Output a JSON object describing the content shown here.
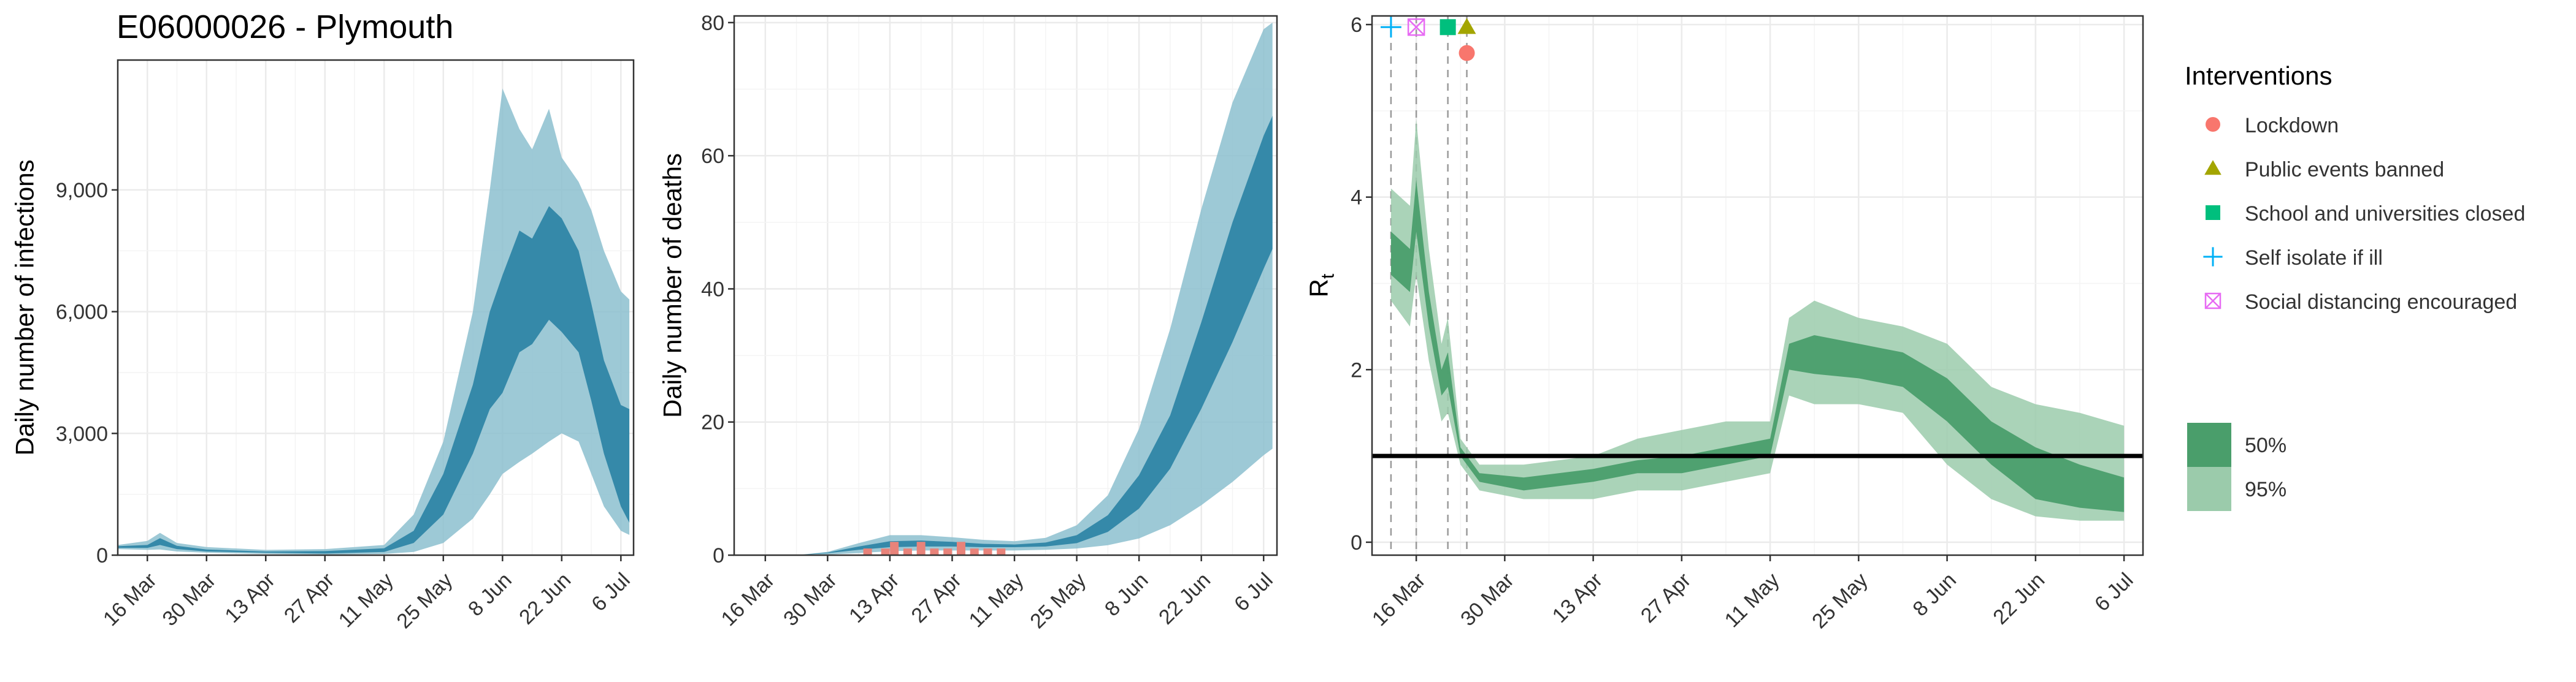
{
  "title": "E06000026 - Plymouth",
  "colors": {
    "infection_50": "#2f86a6",
    "infection_95": "#8cbfcf",
    "rt_50": "#4a9e6b",
    "rt_95": "#9bcbab",
    "observed_deaths": "#e8837a",
    "lockdown": "#F8766D",
    "public_events": "#A3A500",
    "school": "#00BF7D",
    "self_isolate": "#00B0F6",
    "social_distancing": "#E76BF3"
  },
  "legend": {
    "title": "Interventions",
    "items": [
      {
        "label": "Lockdown",
        "shape": "circle",
        "color": "#F8766D"
      },
      {
        "label": "Public events banned",
        "shape": "triangle",
        "color": "#A3A500"
      },
      {
        "label": "School and universities closed",
        "shape": "square",
        "color": "#00BF7D"
      },
      {
        "label": "Self isolate if ill",
        "shape": "plus",
        "color": "#00B0F6"
      },
      {
        "label": "Social distancing encouraged",
        "shape": "boxcross",
        "color": "#E76BF3"
      }
    ],
    "intervals": [
      {
        "label": "50%",
        "color": "#4a9e6b"
      },
      {
        "label": "95%",
        "color": "#9bcbab"
      }
    ]
  },
  "chart_data": [
    {
      "type": "area",
      "title": "E06000026 - Plymouth",
      "xlabel": "",
      "ylabel": "Daily number of infections",
      "xlim": [
        "2020-03-09",
        "2020-07-09"
      ],
      "ylim": [
        0,
        12200
      ],
      "y_ticks": [
        0,
        3000,
        6000,
        9000
      ],
      "y_tick_labels": [
        "0",
        "3,000",
        "6,000",
        "9,000"
      ],
      "x_ticks": [
        "2020-03-16",
        "2020-03-30",
        "2020-04-13",
        "2020-04-27",
        "2020-05-11",
        "2020-05-25",
        "2020-06-08",
        "2020-06-22",
        "2020-07-06"
      ],
      "x_tick_labels": [
        "16 Mar",
        "30 Mar",
        "13 Apr",
        "27 Apr",
        "11 May",
        "25 May",
        "8 Jun",
        "22 Jun",
        "6 Jul"
      ],
      "grid": true,
      "dates": [
        "2020-03-09",
        "2020-03-16",
        "2020-03-19",
        "2020-03-23",
        "2020-03-30",
        "2020-04-13",
        "2020-04-27",
        "2020-05-11",
        "2020-05-18",
        "2020-05-25",
        "2020-06-01",
        "2020-06-05",
        "2020-06-08",
        "2020-06-12",
        "2020-06-15",
        "2020-06-19",
        "2020-06-22",
        "2020-06-26",
        "2020-06-29",
        "2020-07-02",
        "2020-07-06",
        "2020-07-08"
      ],
      "series": [
        {
          "interval": "95%",
          "lower": [
            150,
            130,
            140,
            90,
            60,
            30,
            20,
            30,
            80,
            300,
            900,
            1500,
            2000,
            2300,
            2500,
            2800,
            3000,
            2800,
            2000,
            1200,
            600,
            500
          ],
          "upper": [
            250,
            350,
            550,
            300,
            200,
            130,
            150,
            250,
            1000,
            2800,
            6000,
            9000,
            11500,
            10500,
            10000,
            11000,
            9800,
            9200,
            8500,
            7500,
            6500,
            6300
          ]
        },
        {
          "interval": "50%",
          "lower": [
            180,
            180,
            250,
            150,
            90,
            60,
            40,
            80,
            300,
            1000,
            2500,
            3600,
            4000,
            5000,
            5200,
            5800,
            5500,
            5000,
            3800,
            2500,
            1200,
            800
          ],
          "upper": [
            220,
            250,
            420,
            230,
            140,
            90,
            100,
            170,
            600,
            2000,
            4200,
            6000,
            6900,
            8000,
            7800,
            8600,
            8300,
            7500,
            6200,
            4800,
            3700,
            3600
          ]
        }
      ]
    },
    {
      "type": "area",
      "title": "",
      "xlabel": "",
      "ylabel": "Daily number of deaths",
      "xlim": [
        "2020-03-09",
        "2020-07-09"
      ],
      "ylim": [
        0,
        81
      ],
      "y_ticks": [
        0,
        20,
        40,
        60,
        80
      ],
      "y_tick_labels": [
        "0",
        "20",
        "40",
        "60",
        "80"
      ],
      "x_ticks": [
        "2020-03-16",
        "2020-03-30",
        "2020-04-13",
        "2020-04-27",
        "2020-05-11",
        "2020-05-25",
        "2020-06-08",
        "2020-06-22",
        "2020-07-06"
      ],
      "x_tick_labels": [
        "16 Mar",
        "30 Mar",
        "13 Apr",
        "27 Apr",
        "11 May",
        "25 May",
        "8 Jun",
        "22 Jun",
        "6 Jul"
      ],
      "grid": true,
      "dates": [
        "2020-03-23",
        "2020-03-30",
        "2020-04-06",
        "2020-04-13",
        "2020-04-20",
        "2020-04-27",
        "2020-05-04",
        "2020-05-11",
        "2020-05-18",
        "2020-05-25",
        "2020-06-01",
        "2020-06-08",
        "2020-06-15",
        "2020-06-22",
        "2020-06-29",
        "2020-07-06",
        "2020-07-08"
      ],
      "series": [
        {
          "interval": "95%",
          "lower": [
            0,
            0.1,
            0.3,
            0.6,
            0.7,
            0.7,
            0.7,
            0.7,
            0.8,
            1.0,
            1.5,
            2.5,
            4.5,
            7.5,
            11,
            15,
            16
          ],
          "upper": [
            0,
            0.5,
            1.8,
            3.0,
            3.0,
            2.7,
            2.3,
            2.1,
            2.6,
            4.5,
            9,
            19,
            34,
            52,
            68,
            79,
            80
          ]
        },
        {
          "interval": "50%",
          "lower": [
            0,
            0.3,
            0.8,
            1.2,
            1.3,
            1.3,
            1.2,
            1.2,
            1.3,
            1.8,
            3.5,
            7,
            13,
            22,
            32,
            43,
            46
          ],
          "upper": [
            0,
            0.4,
            1.3,
            2.1,
            2.2,
            2.0,
            1.7,
            1.6,
            1.9,
            3.0,
            6,
            12,
            21,
            35,
            50,
            63,
            66
          ]
        }
      ],
      "observed": {
        "dates": [
          "2020-04-08",
          "2020-04-12",
          "2020-04-14",
          "2020-04-17",
          "2020-04-20",
          "2020-04-23",
          "2020-04-26",
          "2020-04-29",
          "2020-05-02",
          "2020-05-05",
          "2020-05-08",
          "2020-05-11"
        ],
        "values": [
          1,
          1,
          2,
          1,
          2,
          1,
          1,
          2,
          1,
          1,
          1,
          0
        ]
      }
    },
    {
      "type": "area",
      "title": "",
      "xlabel": "",
      "ylabel": "R",
      "ylabel_sub": "t",
      "xlim": [
        "2020-03-09",
        "2020-07-09"
      ],
      "ylim": [
        -0.15,
        6.1
      ],
      "y_ticks": [
        0,
        2,
        4,
        6
      ],
      "y_tick_labels": [
        "0",
        "2",
        "4",
        "6"
      ],
      "x_ticks": [
        "2020-03-16",
        "2020-03-30",
        "2020-04-13",
        "2020-04-27",
        "2020-05-11",
        "2020-05-25",
        "2020-06-08",
        "2020-06-22",
        "2020-07-06"
      ],
      "x_tick_labels": [
        "16 Mar",
        "30 Mar",
        "13 Apr",
        "27 Apr",
        "11 May",
        "25 May",
        "8 Jun",
        "22 Jun",
        "6 Jul"
      ],
      "grid": true,
      "reference_line": 1,
      "dates": [
        "2020-03-12",
        "2020-03-15",
        "2020-03-16",
        "2020-03-18",
        "2020-03-20",
        "2020-03-21",
        "2020-03-23",
        "2020-03-26",
        "2020-04-02",
        "2020-04-13",
        "2020-04-20",
        "2020-04-27",
        "2020-05-04",
        "2020-05-11",
        "2020-05-14",
        "2020-05-18",
        "2020-05-25",
        "2020-06-01",
        "2020-06-08",
        "2020-06-15",
        "2020-06-22",
        "2020-06-29",
        "2020-07-06"
      ],
      "series": [
        {
          "interval": "95%",
          "lower": [
            2.8,
            2.5,
            3.1,
            2.1,
            1.4,
            1.5,
            0.9,
            0.6,
            0.5,
            0.5,
            0.6,
            0.6,
            0.7,
            0.8,
            1.7,
            1.6,
            1.6,
            1.5,
            0.9,
            0.5,
            0.3,
            0.25,
            0.25
          ],
          "upper": [
            4.1,
            3.9,
            4.9,
            3.4,
            2.3,
            2.6,
            1.2,
            0.9,
            0.9,
            1.0,
            1.2,
            1.3,
            1.4,
            1.4,
            2.6,
            2.8,
            2.6,
            2.5,
            2.3,
            1.8,
            1.6,
            1.5,
            1.35
          ]
        },
        {
          "interval": "50%",
          "lower": [
            3.1,
            2.9,
            3.6,
            2.5,
            1.7,
            1.8,
            1.0,
            0.7,
            0.6,
            0.7,
            0.8,
            0.8,
            0.9,
            1.0,
            2.0,
            1.95,
            1.9,
            1.8,
            1.4,
            0.9,
            0.5,
            0.4,
            0.35
          ],
          "upper": [
            3.6,
            3.4,
            4.2,
            2.9,
            2.0,
            2.2,
            1.1,
            0.8,
            0.75,
            0.85,
            0.95,
            1.0,
            1.1,
            1.2,
            2.3,
            2.4,
            2.3,
            2.2,
            1.9,
            1.4,
            1.1,
            0.9,
            0.75
          ]
        }
      ],
      "interventions": [
        {
          "label": "Self isolate if ill",
          "date": "2020-03-12",
          "shape": "plus",
          "color": "#00B0F6",
          "y": 5.97
        },
        {
          "label": "Social distancing encouraged",
          "date": "2020-03-16",
          "shape": "boxcross",
          "color": "#E76BF3",
          "y": 5.97
        },
        {
          "label": "School and universities closed",
          "date": "2020-03-21",
          "shape": "square",
          "color": "#00BF7D",
          "y": 5.97
        },
        {
          "label": "Public events banned",
          "date": "2020-03-24",
          "shape": "triangle",
          "color": "#A3A500",
          "y": 5.97
        },
        {
          "label": "Lockdown",
          "date": "2020-03-24",
          "shape": "circle",
          "color": "#F8766D",
          "y": 5.67
        }
      ]
    }
  ]
}
